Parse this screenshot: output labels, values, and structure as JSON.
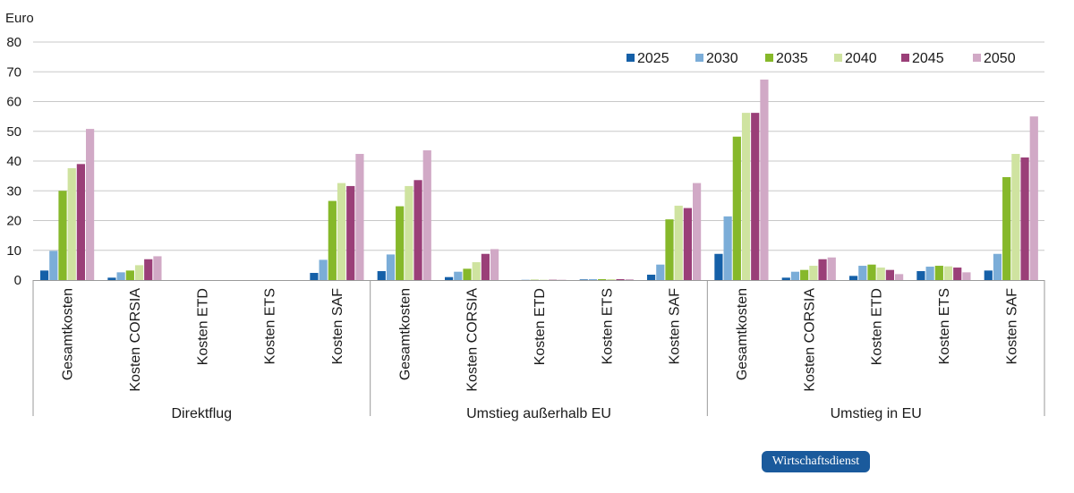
{
  "chart_data": {
    "type": "bar",
    "ylabel": "Euro",
    "ylim": [
      0,
      80
    ],
    "yticks": [
      0,
      10,
      20,
      30,
      40,
      50,
      60,
      70,
      80
    ],
    "grid": true,
    "legend_position": "top-right",
    "groups": [
      {
        "label": "Direktflug",
        "categories": [
          "Gesamtkosten",
          "Kosten CORSIA",
          "Kosten ETD",
          "Kosten ETS",
          "Kosten SAF"
        ]
      },
      {
        "label": "Umstieg außerhalb EU",
        "categories": [
          "Gesamtkosten",
          "Kosten CORSIA",
          "Kosten ETD",
          "Kosten ETS",
          "Kosten SAF"
        ]
      },
      {
        "label": "Umstieg in EU",
        "categories": [
          "Gesamtkosten",
          "Kosten CORSIA",
          "Kosten ETD",
          "Kosten ETS",
          "Kosten SAF"
        ]
      }
    ],
    "series": [
      {
        "name": "2025",
        "color": "#1560a8",
        "values": [
          3.2,
          0.8,
          0,
          0,
          2.4,
          3.0,
          1.0,
          0,
          0.2,
          1.8,
          8.8,
          0.8,
          1.4,
          3.0,
          3.2
        ]
      },
      {
        "name": "2030",
        "color": "#7badd8",
        "values": [
          9.8,
          2.6,
          0,
          0,
          6.8,
          8.6,
          2.8,
          0.1,
          0.3,
          5.2,
          21.4,
          2.8,
          4.8,
          4.5,
          8.8
        ]
      },
      {
        "name": "2035",
        "color": "#86b82a",
        "values": [
          30.0,
          3.2,
          0,
          0,
          26.6,
          24.8,
          3.8,
          0.1,
          0.3,
          20.4,
          48.2,
          3.4,
          5.2,
          4.8,
          34.6
        ]
      },
      {
        "name": "2040",
        "color": "#cfe3a0",
        "values": [
          37.6,
          5.0,
          0,
          0,
          32.6,
          31.6,
          6.0,
          0.1,
          0.3,
          25.0,
          56.2,
          4.8,
          4.2,
          4.6,
          42.4
        ]
      },
      {
        "name": "2045",
        "color": "#9a3f78",
        "values": [
          39.0,
          7.0,
          0,
          0,
          31.6,
          33.6,
          8.8,
          0.1,
          0.3,
          24.2,
          56.2,
          7.0,
          3.4,
          4.2,
          41.2
        ]
      },
      {
        "name": "2050",
        "color": "#d1a9c6",
        "values": [
          50.8,
          8.0,
          0,
          0,
          42.4,
          43.6,
          10.4,
          0.1,
          0.3,
          32.6,
          67.4,
          7.6,
          2.0,
          2.6,
          55.0
        ]
      }
    ]
  },
  "badge": {
    "text": "Wirtschaftsdienst"
  }
}
